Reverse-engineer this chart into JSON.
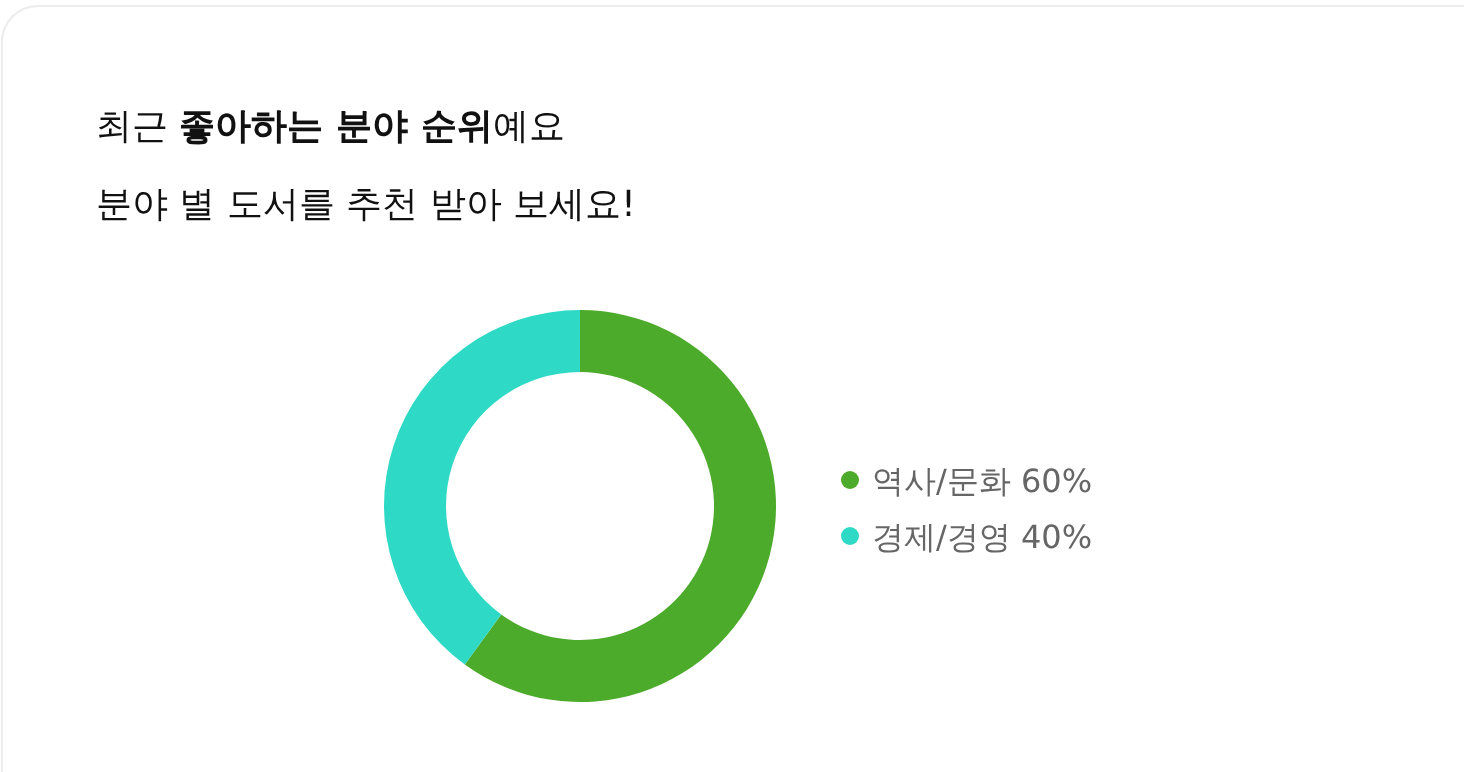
{
  "chart_data": {
    "type": "donut",
    "title": "최근 **좋아하는 분야 순위**예요",
    "subtitle": "분야 별 도서를 추천 받아 보세요!",
    "categories": [
      "역사/문화",
      "경제/경영"
    ],
    "values": [
      60,
      40
    ],
    "value_labels": [
      "60%",
      "40%"
    ],
    "colors": [
      "#4cab2a",
      "#2ed9c5"
    ],
    "legend": "right"
  }
}
